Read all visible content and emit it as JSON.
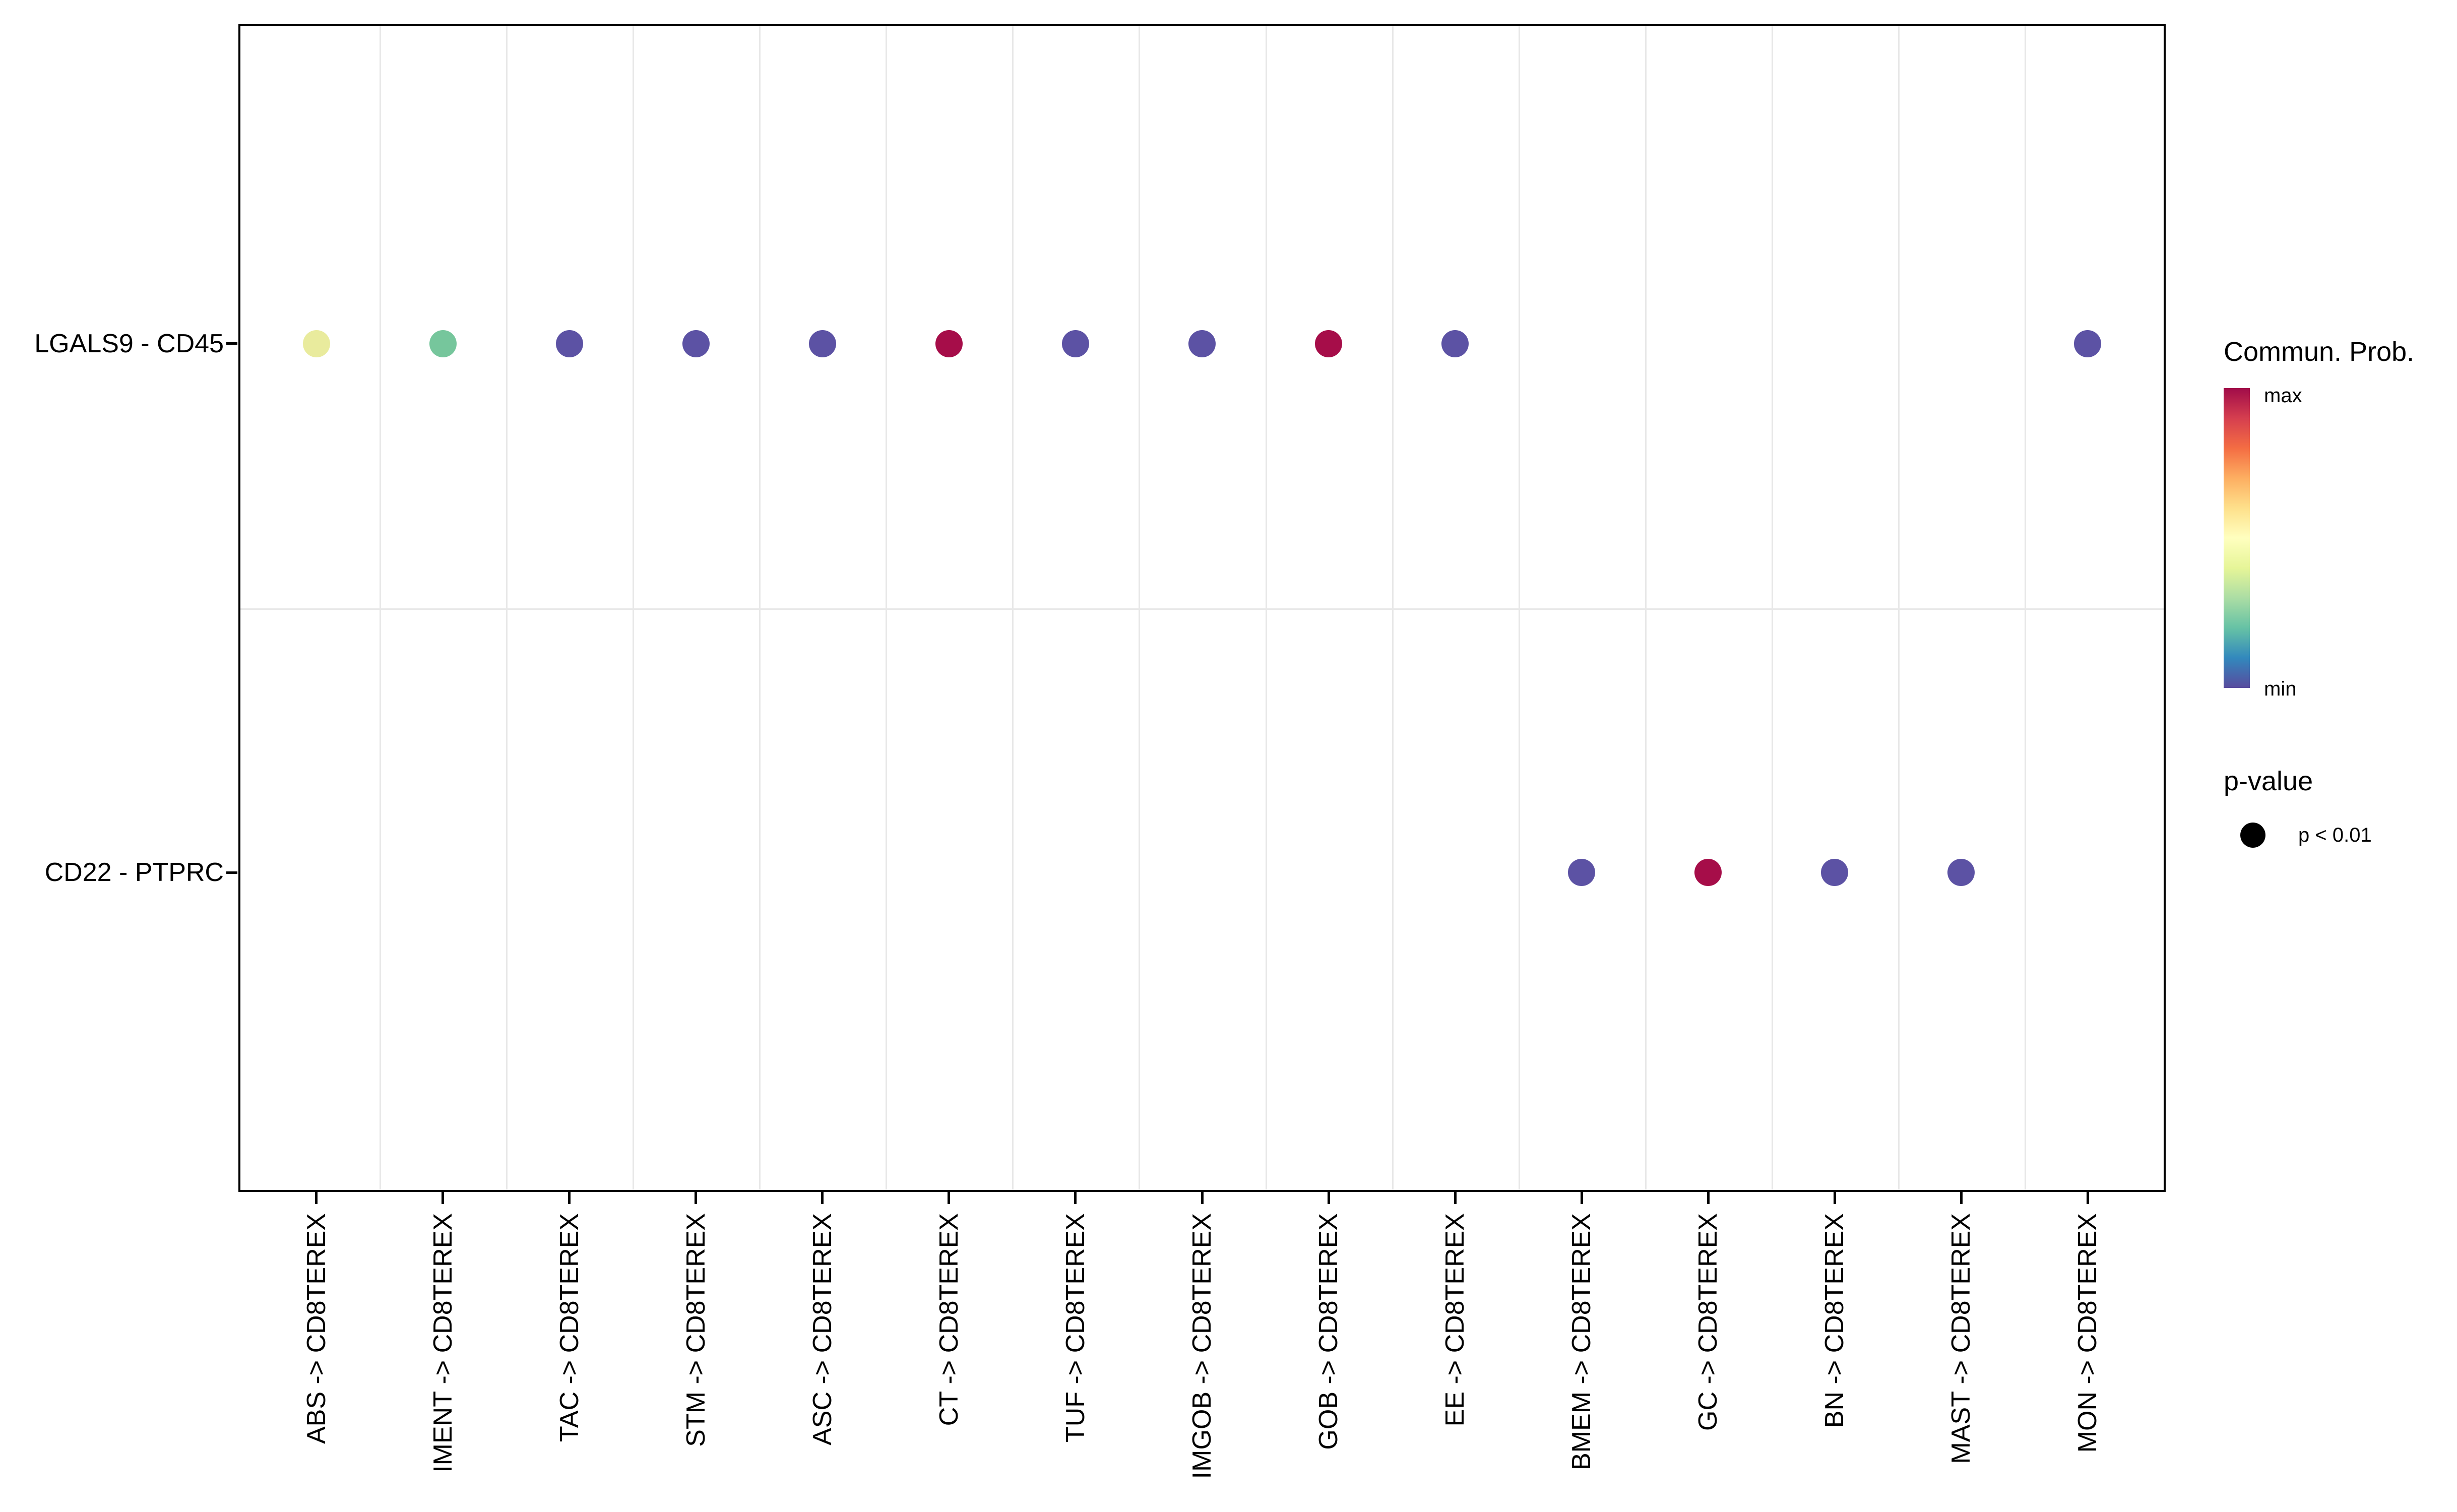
{
  "figure": {
    "description": "Dot plot of inferred ligand-receptor communication (CellChat-style bubble plot)",
    "background": "#ffffff",
    "panel_border_color": "#000000",
    "gridline_color": "#e8e8e8"
  },
  "legend": {
    "commun_prob": {
      "title": "Commun. Prob.",
      "max_label": "max",
      "min_label": "min",
      "gradient_top_to_bottom": [
        "#a10c49",
        "#d53e4f",
        "#f46d43",
        "#fdae61",
        "#fee08b",
        "#ffffbf",
        "#e6f598",
        "#abdda4",
        "#66c2a5",
        "#3288bd",
        "#584b9e"
      ]
    },
    "p_value": {
      "title": "p-value",
      "entries": [
        {
          "label": "p < 0.01",
          "dot_color": "#000000"
        }
      ]
    }
  },
  "chart_data": {
    "type": "scatter",
    "title": "",
    "xlabel": "",
    "ylabel": "",
    "legend_position": "right",
    "grid": "light minor gridlines between categories only",
    "x_categories": [
      "ABS -> CD8TEREX",
      "IMENT -> CD8TEREX",
      "TAC -> CD8TEREX",
      "STM -> CD8TEREX",
      "ASC -> CD8TEREX",
      "CT -> CD8TEREX",
      "TUF -> CD8TEREX",
      "IMGOB -> CD8TEREX",
      "GOB -> CD8TEREX",
      "EE -> CD8TEREX",
      "BMEM -> CD8TEREX",
      "GC -> CD8TEREX",
      "BN -> CD8TEREX",
      "MAST -> CD8TEREX",
      "MON -> CD8TEREX"
    ],
    "y_categories": [
      "LGALS9 - CD45",
      "CD22 - PTPRC"
    ],
    "color_scale": {
      "name": "Spectral reversed (min = purple-blue, max = dark red)",
      "min_label": "min",
      "max_label": "max"
    },
    "dot_size_meaning": "p < 0.01",
    "points": [
      {
        "y": "LGALS9 - CD45",
        "x": "ABS -> CD8TEREX",
        "color": "#e9eb9d",
        "relative_prob": 0.47,
        "p_value": "p < 0.01"
      },
      {
        "y": "LGALS9 - CD45",
        "x": "IMENT -> CD8TEREX",
        "color": "#76c69c",
        "relative_prob": 0.3,
        "p_value": "p < 0.01"
      },
      {
        "y": "LGALS9 - CD45",
        "x": "TAC -> CD8TEREX",
        "color": "#5c52a4",
        "relative_prob": 0.04,
        "p_value": "p < 0.01"
      },
      {
        "y": "LGALS9 - CD45",
        "x": "STM -> CD8TEREX",
        "color": "#5c52a4",
        "relative_prob": 0.04,
        "p_value": "p < 0.01"
      },
      {
        "y": "LGALS9 - CD45",
        "x": "ASC -> CD8TEREX",
        "color": "#5c52a4",
        "relative_prob": 0.04,
        "p_value": "p < 0.01"
      },
      {
        "y": "LGALS9 - CD45",
        "x": "CT -> CD8TEREX",
        "color": "#a60d49",
        "relative_prob": 0.99,
        "p_value": "p < 0.01"
      },
      {
        "y": "LGALS9 - CD45",
        "x": "TUF -> CD8TEREX",
        "color": "#5c52a4",
        "relative_prob": 0.04,
        "p_value": "p < 0.01"
      },
      {
        "y": "LGALS9 - CD45",
        "x": "IMGOB -> CD8TEREX",
        "color": "#5c52a4",
        "relative_prob": 0.04,
        "p_value": "p < 0.01"
      },
      {
        "y": "LGALS9 - CD45",
        "x": "GOB -> CD8TEREX",
        "color": "#a60d49",
        "relative_prob": 0.99,
        "p_value": "p < 0.01"
      },
      {
        "y": "LGALS9 - CD45",
        "x": "EE -> CD8TEREX",
        "color": "#5c52a4",
        "relative_prob": 0.04,
        "p_value": "p < 0.01"
      },
      {
        "y": "LGALS9 - CD45",
        "x": "MON -> CD8TEREX",
        "color": "#5c52a4",
        "relative_prob": 0.04,
        "p_value": "p < 0.01"
      },
      {
        "y": "CD22 - PTPRC",
        "x": "BMEM -> CD8TEREX",
        "color": "#5c52a4",
        "relative_prob": 0.04,
        "p_value": "p < 0.01"
      },
      {
        "y": "CD22 - PTPRC",
        "x": "GC -> CD8TEREX",
        "color": "#a60d49",
        "relative_prob": 0.99,
        "p_value": "p < 0.01"
      },
      {
        "y": "CD22 - PTPRC",
        "x": "BN -> CD8TEREX",
        "color": "#5c52a4",
        "relative_prob": 0.04,
        "p_value": "p < 0.01"
      },
      {
        "y": "CD22 - PTPRC",
        "x": "MAST -> CD8TEREX",
        "color": "#5c52a4",
        "relative_prob": 0.04,
        "p_value": "p < 0.01"
      }
    ]
  }
}
